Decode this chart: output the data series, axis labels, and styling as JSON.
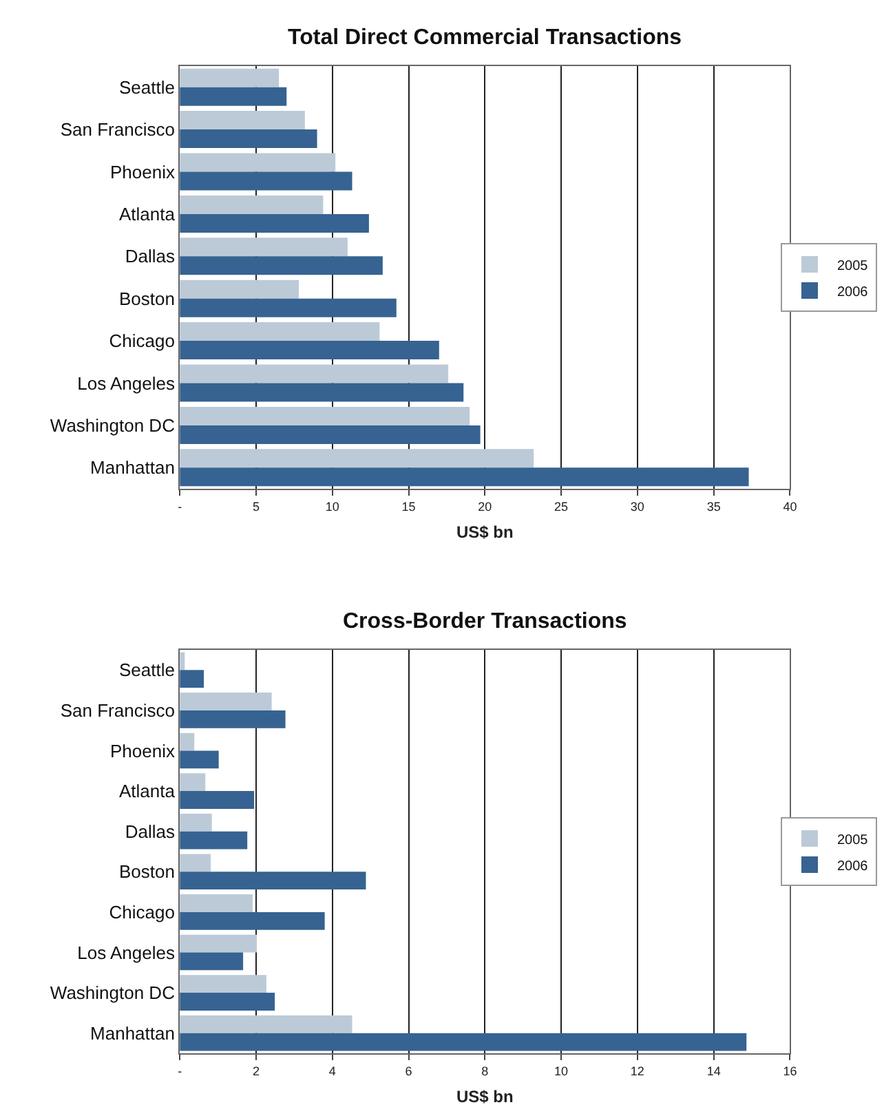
{
  "chart_data": [
    {
      "type": "bar",
      "orientation": "horizontal",
      "title": "Total Direct Commercial Transactions",
      "xlabel": "US$ bn",
      "categories": [
        "Seattle",
        "San Francisco",
        "Phoenix",
        "Atlanta",
        "Dallas",
        "Boston",
        "Chicago",
        "Los Angeles",
        "Washington DC",
        "Manhattan"
      ],
      "series": [
        {
          "name": "2005",
          "color": "#bccad8",
          "values": [
            6.5,
            8.2,
            10.2,
            9.4,
            11.0,
            7.8,
            13.1,
            17.6,
            19.0,
            23.2
          ]
        },
        {
          "name": "2006",
          "color": "#366391",
          "values": [
            7.0,
            9.0,
            11.3,
            12.4,
            13.3,
            14.2,
            17.0,
            18.6,
            19.7,
            37.3
          ]
        }
      ],
      "xlim": [
        0,
        40
      ],
      "xticks": [
        {
          "value": 0,
          "label": "-"
        },
        5,
        10,
        15,
        20,
        25,
        30,
        35,
        40
      ],
      "grid": "x",
      "legend": "right"
    },
    {
      "type": "bar",
      "orientation": "horizontal",
      "title": "Cross-Border Transactions",
      "xlabel": "US$ bn",
      "categories": [
        "Seattle",
        "San Francisco",
        "Phoenix",
        "Atlanta",
        "Dallas",
        "Boston",
        "Chicago",
        "Los Angeles",
        "Washington DC",
        "Manhattan"
      ],
      "series": [
        {
          "name": "2005",
          "color": "#bccad8",
          "values": [
            0.13,
            2.41,
            0.38,
            0.67,
            0.84,
            0.81,
            1.91,
            2.02,
            2.27,
            4.52
          ]
        },
        {
          "name": "2006",
          "color": "#366391",
          "values": [
            0.63,
            2.77,
            1.02,
            1.95,
            1.77,
            4.88,
            3.8,
            1.66,
            2.49,
            14.86
          ]
        }
      ],
      "xlim": [
        0,
        16
      ],
      "xticks": [
        {
          "value": 0,
          "label": "-"
        },
        2,
        4,
        6,
        8,
        10,
        12,
        14,
        16
      ],
      "grid": "x",
      "legend": "right"
    }
  ]
}
